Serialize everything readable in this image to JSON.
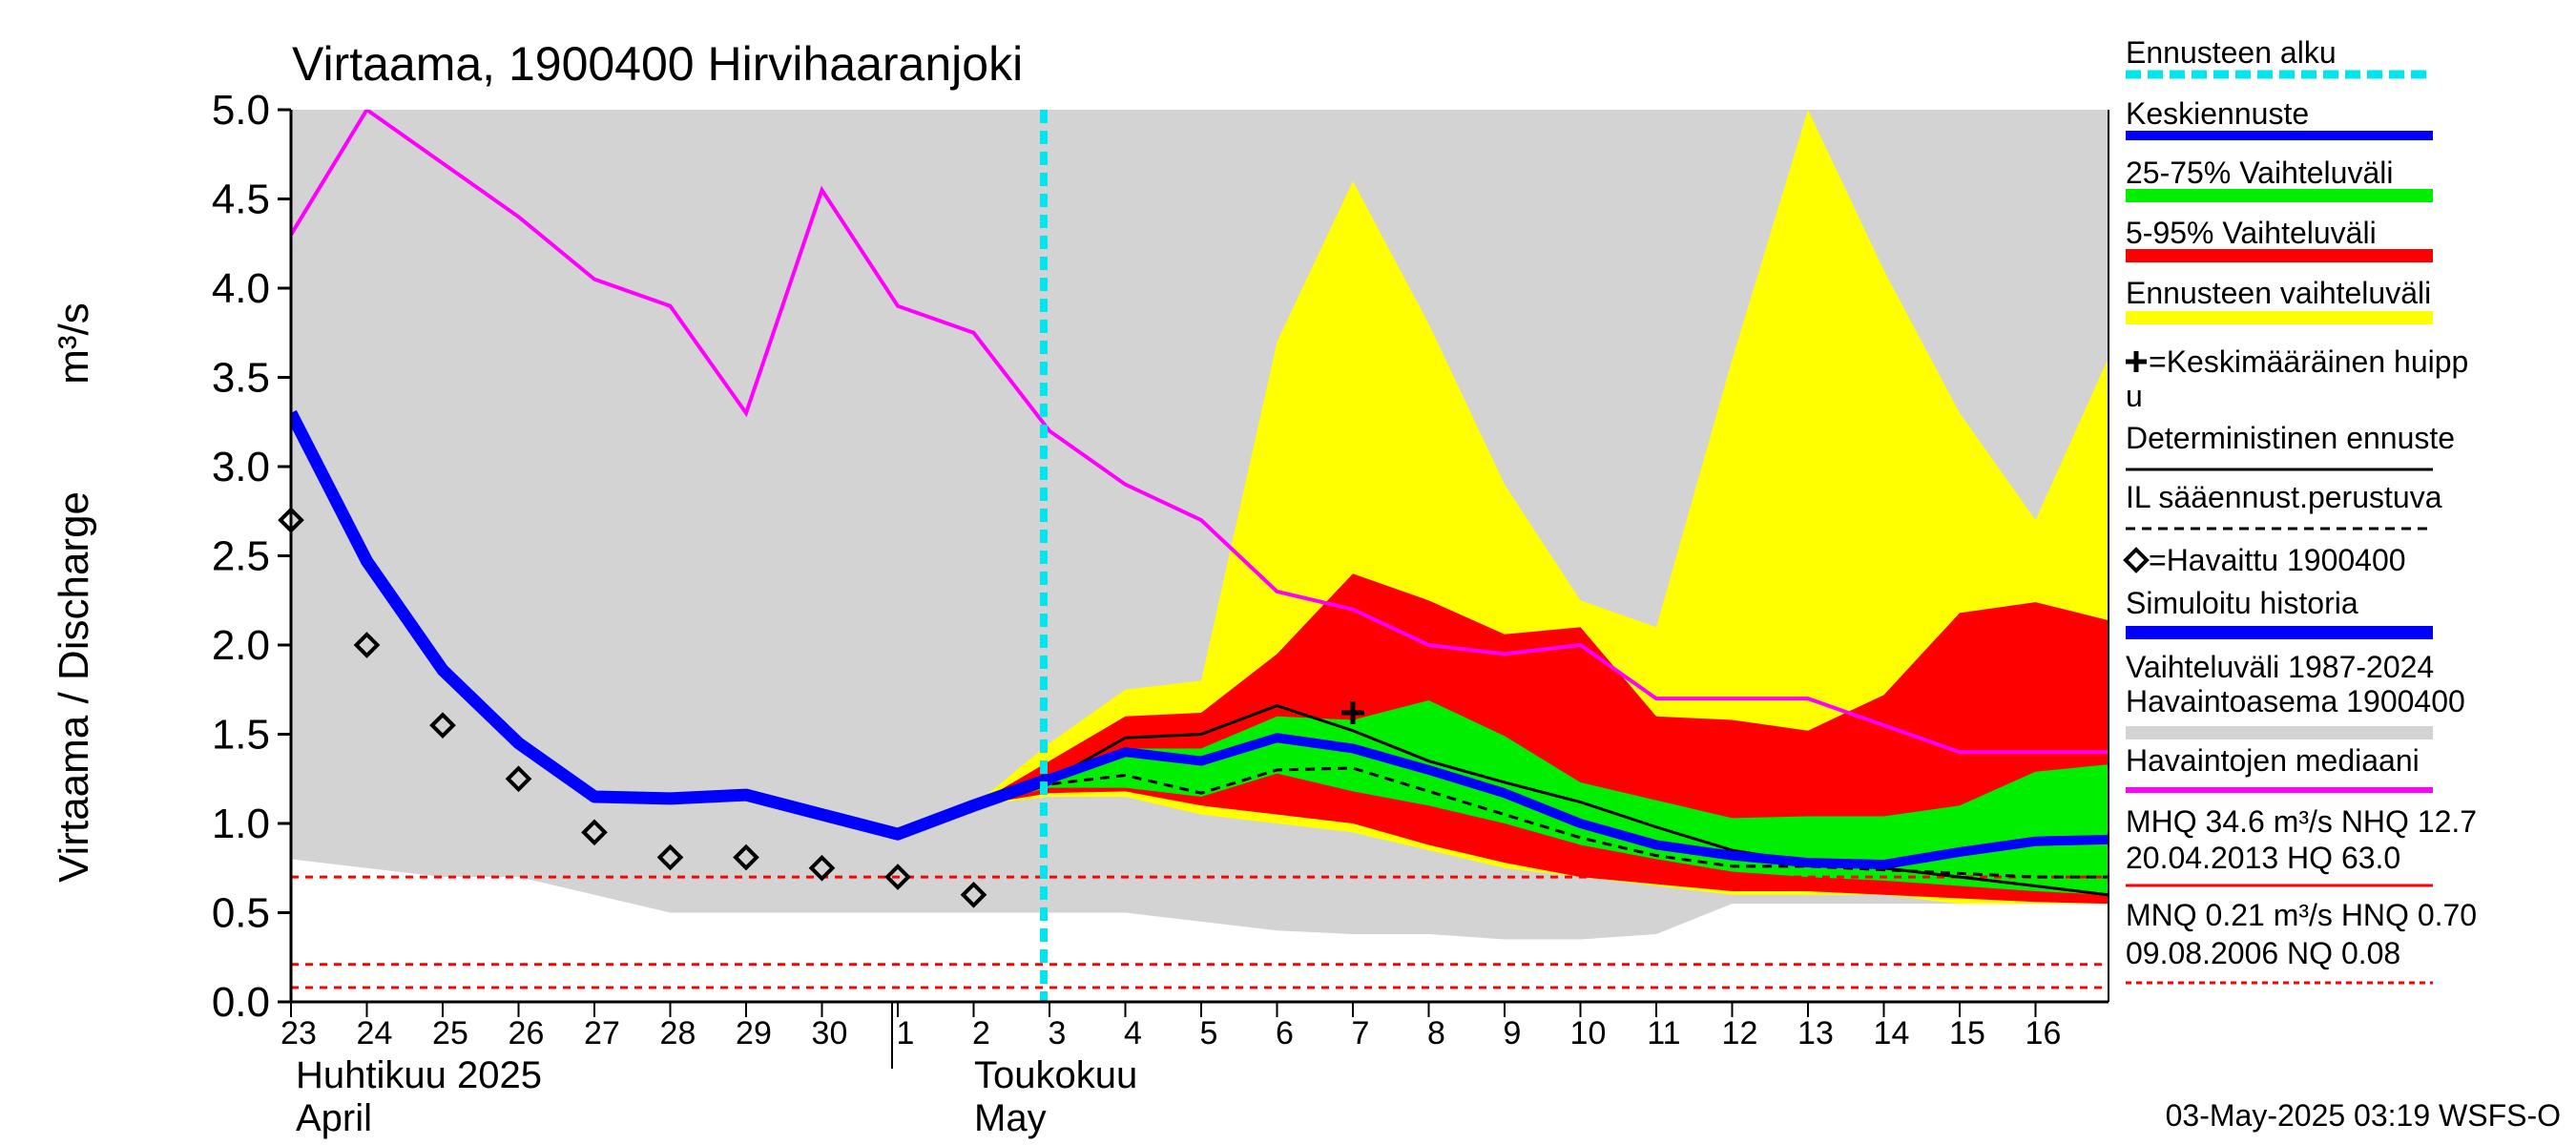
{
  "chart_data": {
    "type": "area",
    "title": "Virtaama, 1900400 Hirvihaaranjoki",
    "ylabel": "Virtaama / Discharge",
    "yunit": "m³/s",
    "ylim": [
      0.0,
      5.0
    ],
    "yticks": [
      "0.0",
      "0.5",
      "1.0",
      "1.5",
      "2.0",
      "2.5",
      "3.0",
      "3.5",
      "4.0",
      "4.5",
      "5.0"
    ],
    "x_days": [
      "23",
      "24",
      "25",
      "26",
      "27",
      "28",
      "29",
      "30",
      "1",
      "2",
      "3",
      "4",
      "5",
      "6",
      "7",
      "8",
      "9",
      "10",
      "11",
      "12",
      "13",
      "14",
      "15",
      "16"
    ],
    "month_labels": [
      {
        "fi": "Huhtikuu  2025",
        "en": "April"
      },
      {
        "fi": "Toukokuu",
        "en": "May"
      }
    ],
    "forecast_start_day": "3",
    "colors": {
      "history_range": "#d3d3d3",
      "forecast_range": "#ffff00",
      "p5_95": "#ff0000",
      "p25_75": "#00ee00",
      "mean_forecast": "#0000ff",
      "simulated_history": "#0000ff",
      "median": "#ff00ff",
      "forecast_start": "#00e5ee",
      "reference_lines": "#ff0000"
    },
    "series": {
      "history_range": {
        "x": [
          0,
          1,
          2,
          3,
          4,
          5,
          6,
          7,
          8,
          9,
          10,
          11,
          12,
          13,
          14,
          15,
          16,
          17,
          18,
          19,
          20,
          21,
          22,
          23,
          23.95
        ],
        "upper": [
          5.0,
          5.0,
          5.0,
          5.0,
          5.0,
          5.0,
          5.0,
          5.0,
          5.0,
          5.0,
          5.0,
          5.0,
          5.0,
          5.0,
          5.0,
          5.0,
          5.0,
          5.0,
          5.0,
          5.0,
          5.0,
          5.0,
          5.0,
          5.0,
          5.0
        ],
        "lower": [
          0.8,
          0.75,
          0.7,
          0.7,
          0.6,
          0.5,
          0.5,
          0.5,
          0.5,
          0.5,
          0.5,
          0.5,
          0.45,
          0.4,
          0.38,
          0.38,
          0.35,
          0.35,
          0.38,
          0.55,
          0.55,
          0.55,
          0.55,
          0.55,
          0.55
        ]
      },
      "forecast_range": {
        "x": [
          9,
          10,
          11,
          12,
          13,
          14,
          15,
          16,
          17,
          18,
          19,
          20,
          21,
          22,
          23,
          23.95
        ],
        "upper": [
          1.1,
          1.45,
          1.75,
          1.8,
          3.7,
          4.6,
          3.8,
          2.9,
          2.25,
          2.1,
          3.6,
          5.0,
          4.1,
          3.3,
          2.7,
          3.6
        ],
        "lower": [
          1.1,
          1.15,
          1.15,
          1.05,
          1.0,
          0.95,
          0.85,
          0.75,
          0.7,
          0.65,
          0.6,
          0.6,
          0.6,
          0.55,
          0.55,
          0.55
        ]
      },
      "p5_95": {
        "x": [
          9,
          10,
          11,
          12,
          13,
          14,
          15,
          16,
          17,
          18,
          19,
          20,
          21,
          22,
          23,
          23.95
        ],
        "upper": [
          1.1,
          1.35,
          1.6,
          1.62,
          1.95,
          2.4,
          2.25,
          2.06,
          2.1,
          1.6,
          1.58,
          1.52,
          1.72,
          2.18,
          2.24,
          2.14
        ],
        "lower": [
          1.1,
          1.17,
          1.18,
          1.1,
          1.05,
          1.0,
          0.88,
          0.78,
          0.7,
          0.66,
          0.62,
          0.62,
          0.6,
          0.58,
          0.56,
          0.55
        ]
      },
      "p25_75": {
        "x": [
          9,
          10,
          11,
          12,
          13,
          14,
          15,
          16,
          17,
          18,
          19,
          20,
          21,
          22,
          23,
          23.95
        ],
        "upper": [
          1.1,
          1.25,
          1.42,
          1.42,
          1.6,
          1.58,
          1.69,
          1.49,
          1.23,
          1.13,
          1.03,
          1.04,
          1.04,
          1.1,
          1.29,
          1.33
        ],
        "lower": [
          1.1,
          1.2,
          1.2,
          1.15,
          1.28,
          1.18,
          1.1,
          1.0,
          0.88,
          0.8,
          0.73,
          0.7,
          0.68,
          0.65,
          0.62,
          0.6
        ]
      },
      "mean_forecast": {
        "name": "Keskiennuste",
        "x": [
          9,
          10,
          11,
          12,
          13,
          14,
          15,
          16,
          17,
          18,
          19,
          20,
          21,
          22,
          23,
          23.95
        ],
        "y": [
          1.1,
          1.25,
          1.4,
          1.35,
          1.48,
          1.42,
          1.3,
          1.17,
          1.0,
          0.88,
          0.82,
          0.78,
          0.77,
          0.84,
          0.9,
          0.91
        ]
      },
      "simulated_history": {
        "name": "Simuloitu historia",
        "x": [
          0,
          1,
          2,
          3,
          4,
          5,
          6,
          7,
          8,
          9,
          10
        ],
        "y": [
          3.3,
          2.47,
          1.86,
          1.45,
          1.15,
          1.14,
          1.16,
          1.05,
          0.94,
          1.1,
          1.25
        ]
      },
      "deterministic": {
        "name": "Deterministinen ennuste",
        "x": [
          9,
          10,
          11,
          12,
          13,
          14,
          15,
          16,
          17,
          18,
          19,
          20,
          21,
          22,
          23,
          23.95
        ],
        "y": [
          1.1,
          1.24,
          1.48,
          1.5,
          1.66,
          1.52,
          1.35,
          1.23,
          1.12,
          0.98,
          0.85,
          0.78,
          0.75,
          0.7,
          0.65,
          0.6
        ]
      },
      "il_forecast": {
        "name": "IL sääennust.perustuva",
        "x": [
          9,
          10,
          11,
          12,
          13,
          14,
          15,
          16,
          17,
          18,
          19,
          20,
          21,
          22,
          23,
          23.95
        ],
        "y": [
          1.1,
          1.22,
          1.27,
          1.17,
          1.3,
          1.31,
          1.18,
          1.05,
          0.92,
          0.82,
          0.76,
          0.76,
          0.74,
          0.72,
          0.7,
          0.7
        ]
      },
      "observed": {
        "name": "Havaittu 1900400",
        "x": [
          0,
          1,
          2,
          3,
          4,
          5,
          6,
          7,
          8,
          9
        ],
        "y": [
          2.7,
          2.0,
          1.55,
          1.25,
          0.95,
          0.81,
          0.81,
          0.75,
          0.7,
          0.6
        ]
      },
      "median": {
        "name": "Havaintojen mediaani",
        "x": [
          0,
          1,
          2,
          3,
          4,
          5,
          6,
          7,
          8,
          9,
          10,
          11,
          12,
          13,
          14,
          15,
          16,
          17,
          18,
          19,
          20,
          21,
          22,
          23,
          23.95
        ],
        "y": [
          4.3,
          5.0,
          4.7,
          4.4,
          4.05,
          3.9,
          3.3,
          4.55,
          3.9,
          3.75,
          3.2,
          2.9,
          2.7,
          2.3,
          2.2,
          2.0,
          1.95,
          2.0,
          1.7,
          1.7,
          1.7,
          1.55,
          1.4,
          1.4,
          1.4
        ]
      },
      "mean_peak": {
        "name": "Keskimääräinen huippu",
        "x": 14.0,
        "y": 1.62
      },
      "reference_lines": [
        0.7,
        0.21,
        0.08
      ]
    },
    "legend": [
      "Ennusteen alku",
      "Keskiennuste",
      "25-75% Vaihteluväli",
      "5-95% Vaihteluväli",
      "Ennusteen vaihteluväli",
      "=Keskimääräinen huipp",
      "u",
      "Deterministinen ennuste",
      "IL sääennust.perustuva",
      "=Havaittu 1900400",
      "Simuloitu historia",
      "Vaihteluväli 1987-2024",
      " Havaintoasema 1900400",
      "Havaintojen mediaani",
      "MHQ 34.6 m³/s NHQ 12.7",
      "20.04.2013 HQ 63.0",
      "MNQ 0.21 m³/s HNQ 0.70",
      "09.08.2006 NQ 0.08"
    ],
    "footer": "03-May-2025 03:19 WSFS-O"
  }
}
